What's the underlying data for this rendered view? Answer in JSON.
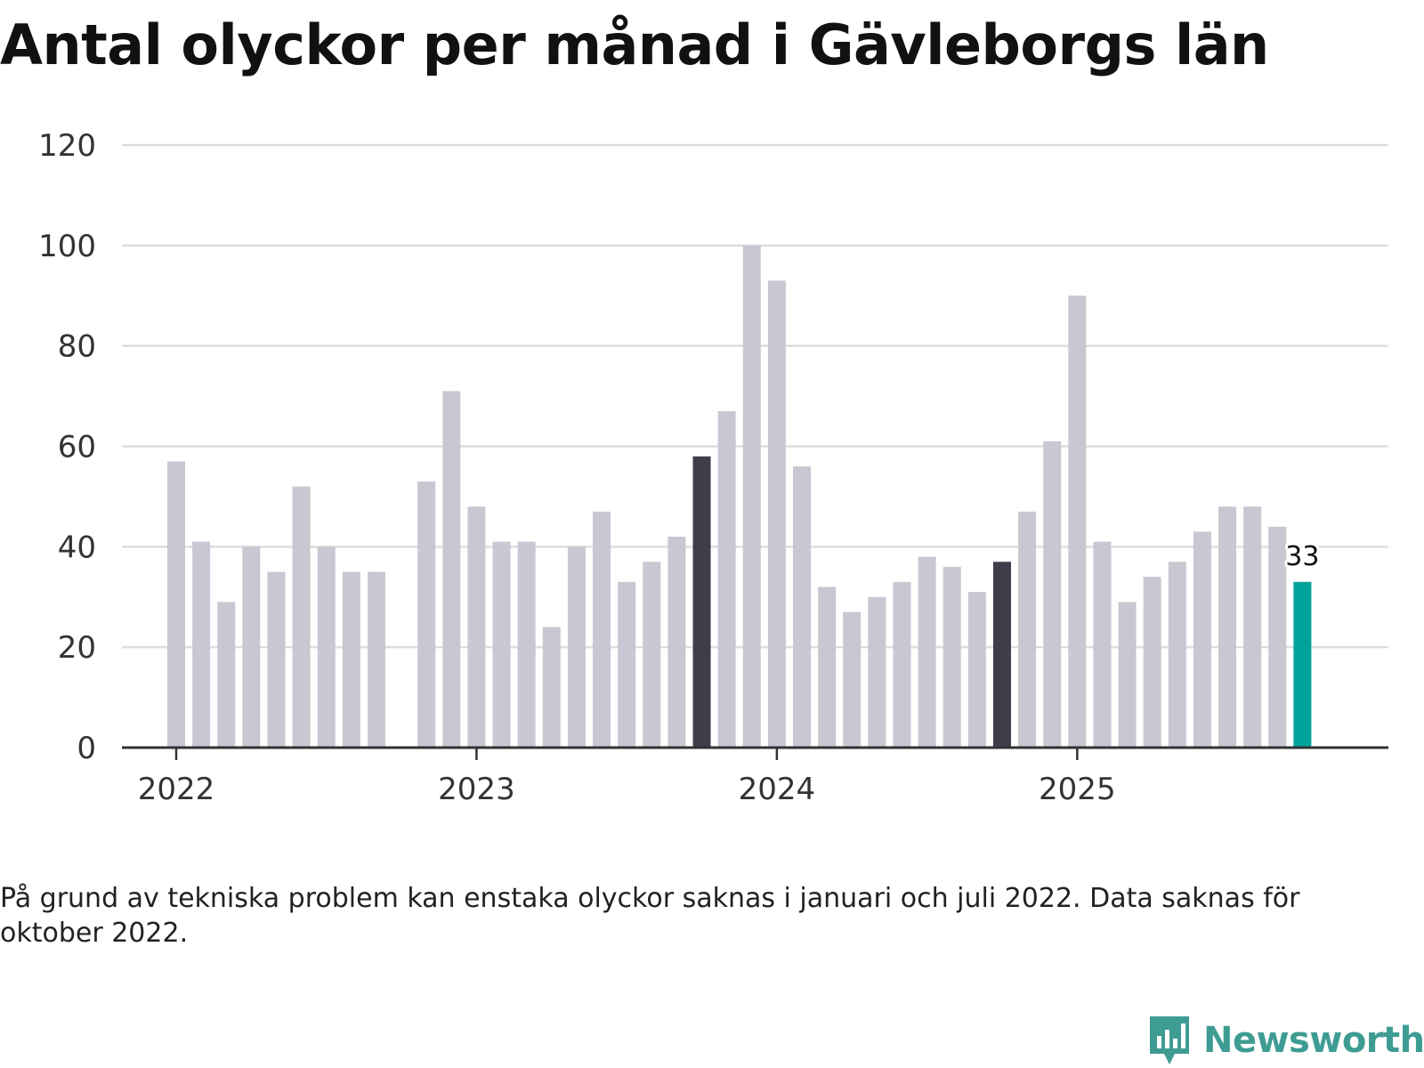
{
  "title": "Antal olyckor per månad i Gävleborgs län",
  "footnote": "På grund av tekniska problem kan enstaka olyckor saknas i januari och juli 2022. Data saknas för oktober 2022.",
  "brand": {
    "name": "Newsworthy",
    "color": "#3e9c93",
    "icon": "bar-chart-speech-bubble-icon"
  },
  "colors": {
    "bar": "#c8c7d2",
    "highlight_dark": "#3e3d4a",
    "highlight_current": "#00a39a",
    "grid": "#dddddd",
    "axis": "#333333"
  },
  "chart_data": {
    "type": "bar",
    "title": "Antal olyckor per månad i Gävleborgs län",
    "xlabel": "",
    "ylabel": "",
    "ylim": [
      0,
      120
    ],
    "yticks": [
      0,
      20,
      40,
      60,
      80,
      100,
      120
    ],
    "grid": true,
    "x_tick_labels": [
      "2022",
      "2023",
      "2024",
      "2025"
    ],
    "months": [
      "2022-01",
      "2022-02",
      "2022-03",
      "2022-04",
      "2022-05",
      "2022-06",
      "2022-07",
      "2022-08",
      "2022-09",
      "2022-10",
      "2022-11",
      "2022-12",
      "2023-01",
      "2023-02",
      "2023-03",
      "2023-04",
      "2023-05",
      "2023-06",
      "2023-07",
      "2023-08",
      "2023-09",
      "2023-10",
      "2023-11",
      "2023-12",
      "2024-01",
      "2024-02",
      "2024-03",
      "2024-04",
      "2024-05",
      "2024-06",
      "2024-07",
      "2024-08",
      "2024-09",
      "2024-10",
      "2024-11",
      "2024-12",
      "2025-01",
      "2025-02",
      "2025-03",
      "2025-04",
      "2025-05",
      "2025-06",
      "2025-07",
      "2025-08",
      "2025-09",
      "2025-10"
    ],
    "values": [
      57,
      41,
      29,
      40,
      35,
      52,
      40,
      35,
      35,
      null,
      53,
      71,
      48,
      41,
      41,
      24,
      40,
      47,
      33,
      37,
      42,
      58,
      67,
      100,
      93,
      56,
      32,
      27,
      30,
      33,
      38,
      36,
      31,
      37,
      47,
      61,
      90,
      41,
      29,
      34,
      37,
      43,
      48,
      48,
      44,
      33
    ],
    "highlight_dark": [
      "2023-10",
      "2024-10"
    ],
    "highlight_current": "2025-10",
    "value_labels": [
      {
        "month": "2025-10",
        "text": "33"
      }
    ]
  }
}
